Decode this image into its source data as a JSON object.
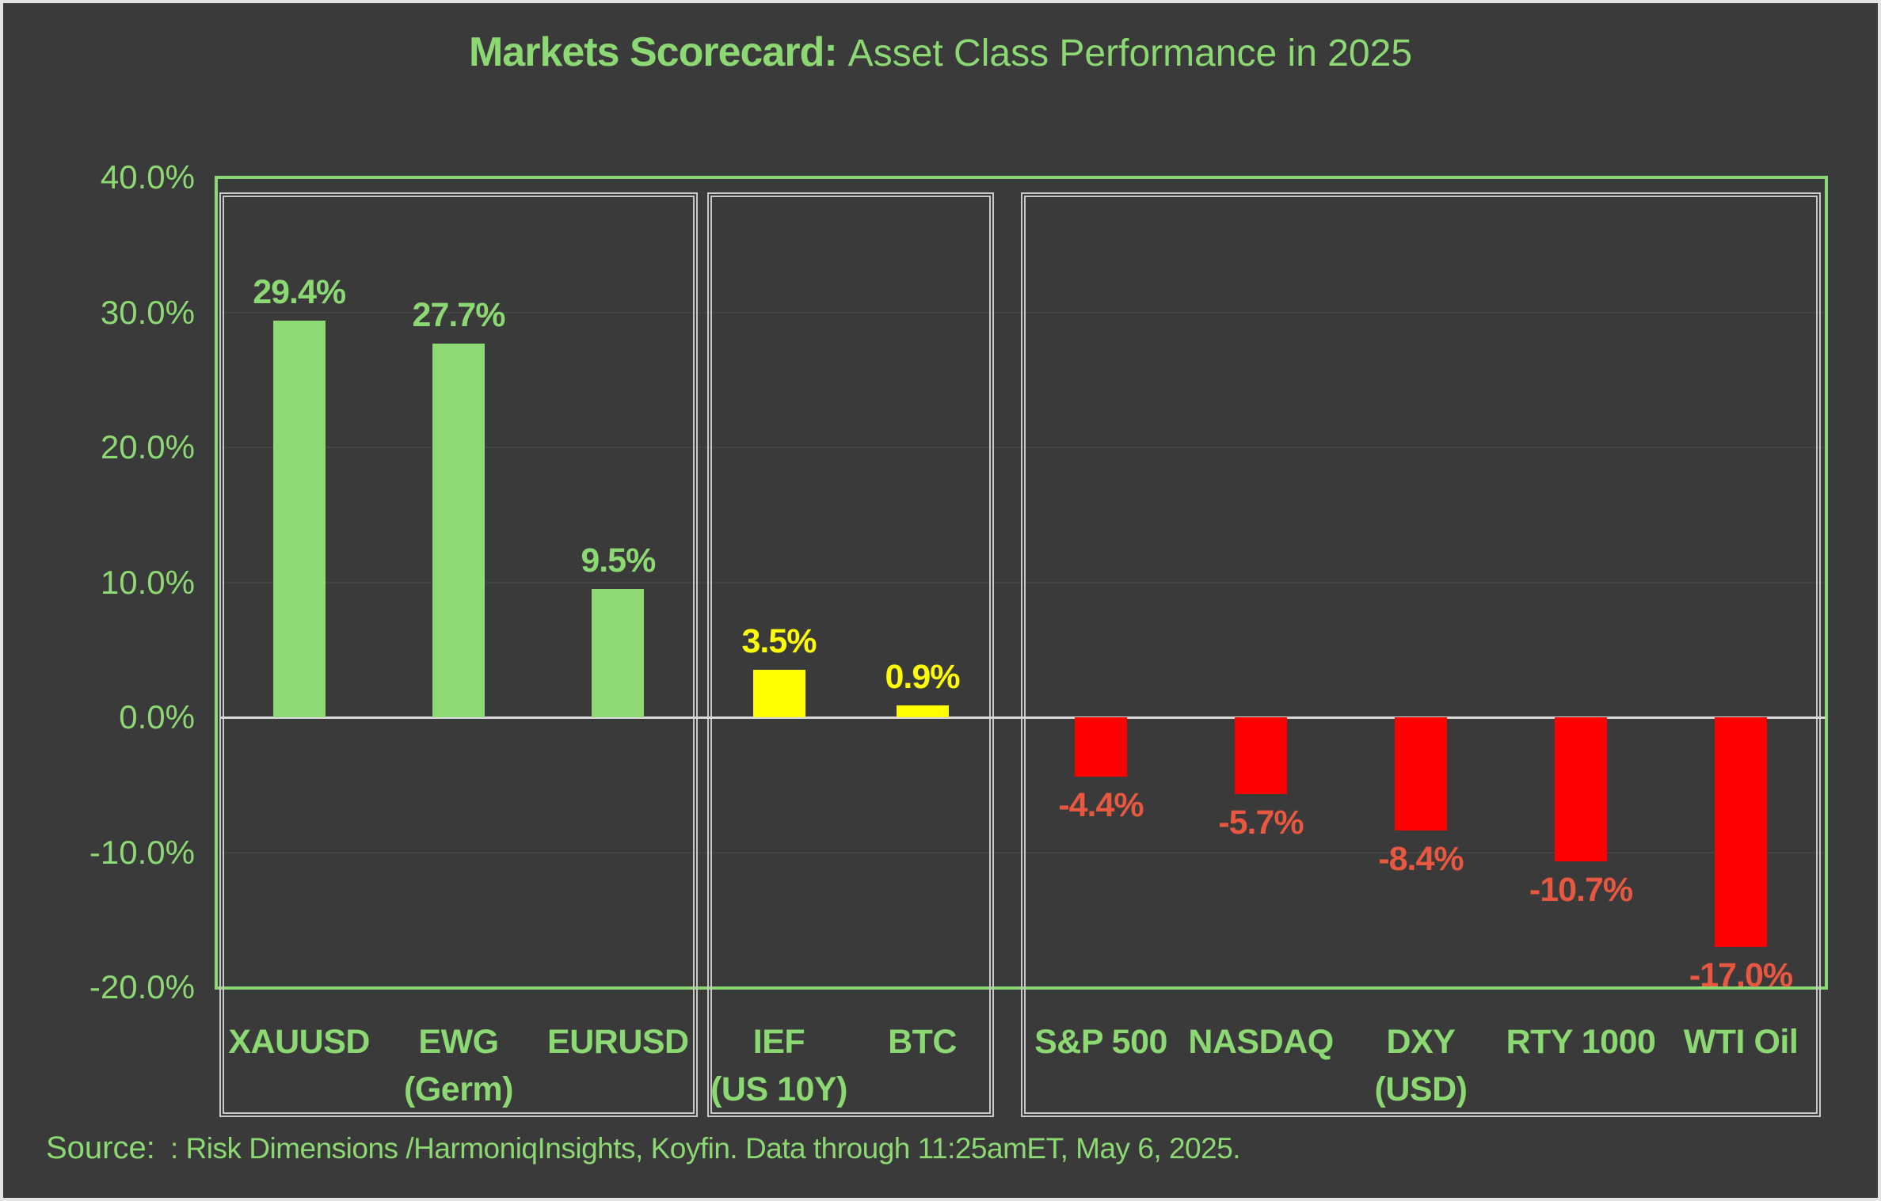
{
  "title": {
    "main": "Markets Scorecard:",
    "subtitle": "Asset Class Performance in 2025"
  },
  "source": {
    "label": "Source: ",
    "body": ": Risk Dimensions /HarmoniqInsights, Koyfin. Data through 11:25amET, May 6, 2025."
  },
  "colors": {
    "background": "#3A3A3A",
    "canvas_border": "#E3E3E3",
    "accent_green": "#8CD973",
    "bar_green": "#8DD973",
    "bar_yellow": "#FFFF00",
    "bar_red": "#FF0000",
    "label_red": "#E8573F",
    "panel_border": "#C8C8C8",
    "zero_line": "#D9D9D9",
    "gridline": "#444444"
  },
  "y_axis": {
    "ticks": [
      {
        "label": "40.0%",
        "value": 40
      },
      {
        "label": "30.0%",
        "value": 30
      },
      {
        "label": "20.0%",
        "value": 20
      },
      {
        "label": "10.0%",
        "value": 10
      },
      {
        "label": "0.0%",
        "value": 0
      },
      {
        "label": "-10.0%",
        "value": -10
      },
      {
        "label": "-20.0%",
        "value": -20
      }
    ]
  },
  "chart_data": {
    "type": "bar",
    "title": "Markets Scorecard: Asset Class Performance in 2025",
    "xlabel": "",
    "ylabel": "",
    "ylim": [
      -20,
      40
    ],
    "grid": "horizontal-faint",
    "groups": [
      {
        "name": "gainers",
        "bar_color": "#8DD973",
        "label_color": "#8CD973",
        "bars": [
          {
            "category_lines": [
              "XAUUSD"
            ],
            "value": 29.4,
            "label": "29.4%"
          },
          {
            "category_lines": [
              "EWG",
              "(Germ)"
            ],
            "value": 27.7,
            "label": "27.7%"
          },
          {
            "category_lines": [
              "EURUSD"
            ],
            "value": 9.5,
            "label": "9.5%"
          }
        ]
      },
      {
        "name": "flat",
        "bar_color": "#FFFF00",
        "label_color": "#FFFF00",
        "bars": [
          {
            "category_lines": [
              "IEF",
              "(US 10Y)"
            ],
            "value": 3.5,
            "label": "3.5%"
          },
          {
            "category_lines": [
              "BTC"
            ],
            "value": 0.9,
            "label": "0.9%"
          }
        ]
      },
      {
        "name": "losers",
        "bar_color": "#FF0000",
        "label_color": "#E8573F",
        "bars": [
          {
            "category_lines": [
              "S&P 500"
            ],
            "value": -4.4,
            "label": "-4.4%"
          },
          {
            "category_lines": [
              "NASDAQ"
            ],
            "value": -5.7,
            "label": "-5.7%"
          },
          {
            "category_lines": [
              "DXY",
              "(USD)"
            ],
            "value": -8.4,
            "label": "-8.4%"
          },
          {
            "category_lines": [
              "RTY 1000"
            ],
            "value": -10.7,
            "label": "-10.7%"
          },
          {
            "category_lines": [
              "WTI Oil"
            ],
            "value": -17.0,
            "label": "-17.0%"
          }
        ]
      }
    ]
  }
}
